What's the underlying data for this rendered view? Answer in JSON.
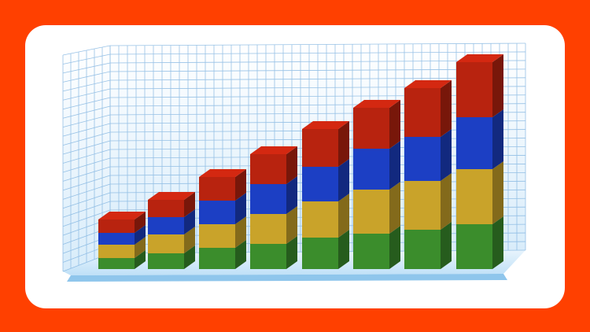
{
  "chart_data": {
    "type": "bar3d-stacked",
    "categories": [
      null,
      null,
      null,
      null,
      null,
      null,
      null,
      null
    ],
    "series": [
      {
        "color": "#3b8d2c",
        "values": [
          14,
          20,
          27,
          32,
          40,
          45,
          50,
          57
        ]
      },
      {
        "color": "#c9a32a",
        "values": [
          17,
          24,
          30,
          38,
          46,
          56,
          62,
          70
        ]
      },
      {
        "color": "#1c3fc4",
        "values": [
          15,
          22,
          30,
          38,
          44,
          52,
          56,
          66
        ]
      },
      {
        "color": "#b8230f",
        "values": [
          17,
          22,
          30,
          38,
          48,
          52,
          62,
          70
        ]
      }
    ],
    "ylim": [
      0,
      260
    ],
    "grid": true
  }
}
